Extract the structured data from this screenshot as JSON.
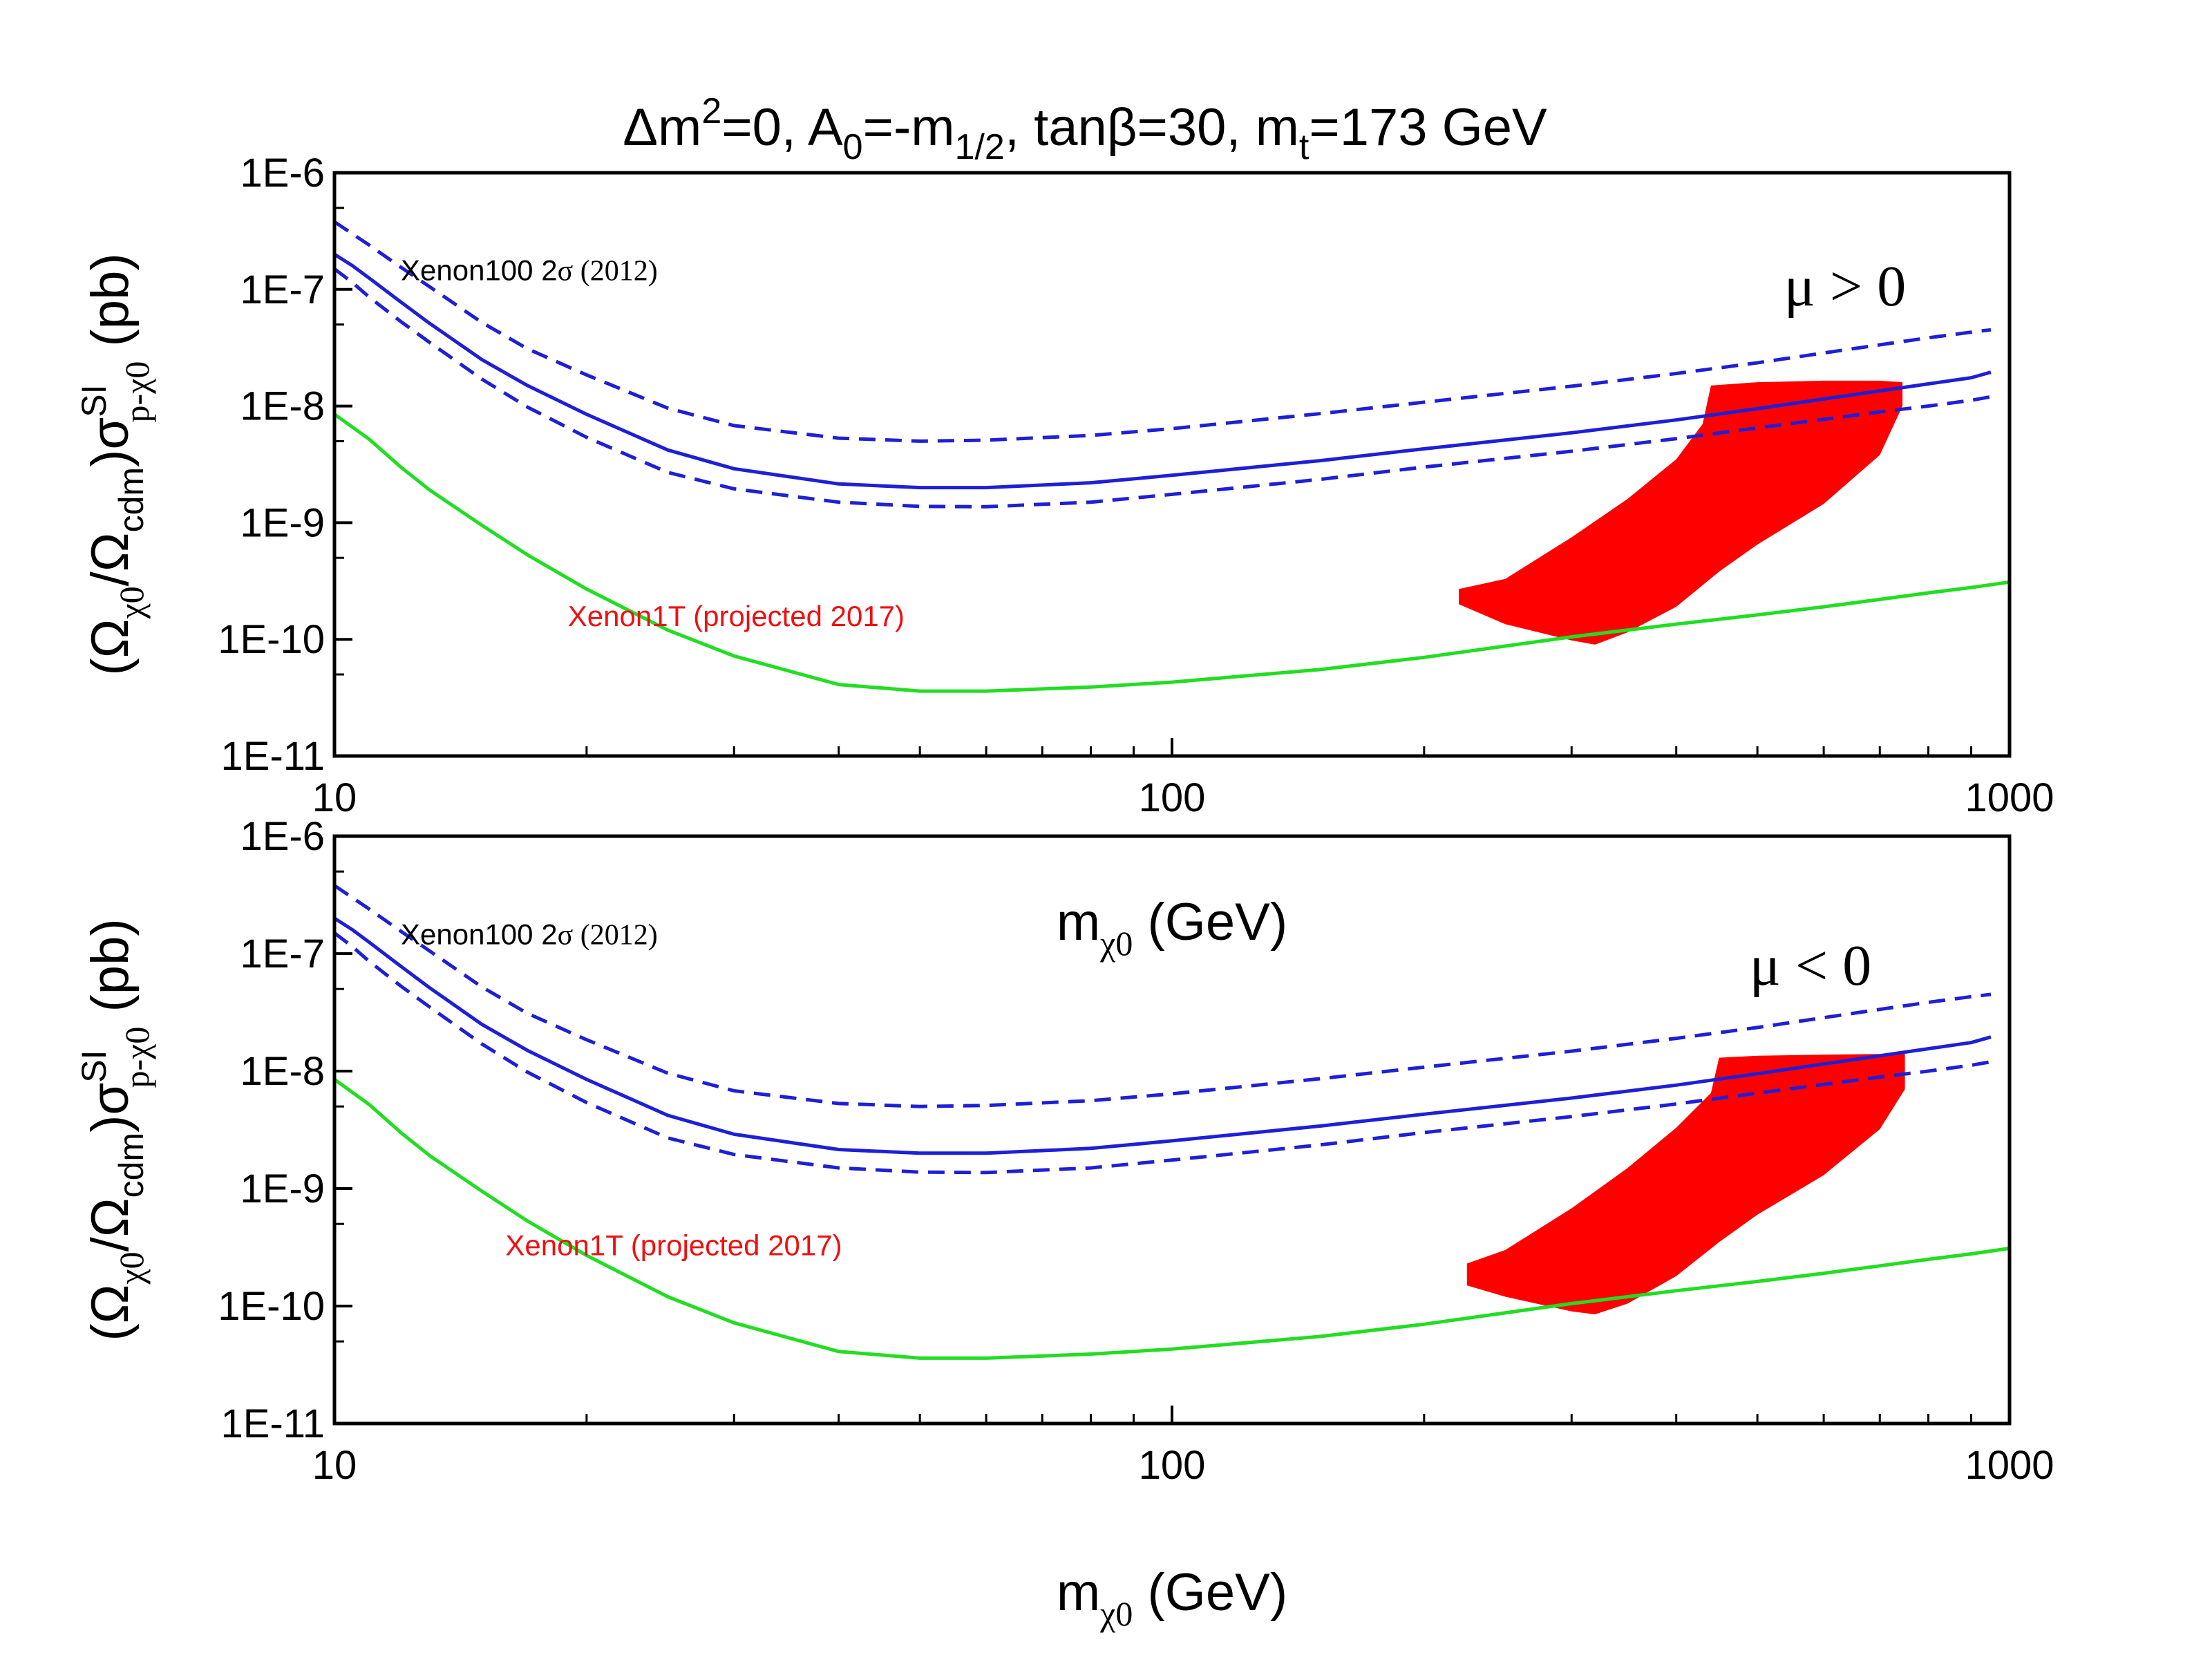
{
  "figure": {
    "title_parts": [
      "Δm",
      "2",
      "=0, A",
      "0",
      "=-m",
      "1/2",
      ", tanβ=30, m",
      "t",
      "=173 GeV"
    ],
    "colors": {
      "xenon100": "#1f1fd6",
      "xenon1t": "#22dd22",
      "allowed_region": "#ff0000",
      "axis": "#000000",
      "xenon1t_label": "#ee1111"
    }
  },
  "chart_data": [
    {
      "type": "line",
      "panel": "top",
      "sign_label": "μ > 0",
      "xlabel_parts": [
        "m",
        "χ0",
        " (GeV)"
      ],
      "ylabel_parts": [
        "(Ω",
        "χ0",
        "/Ω",
        "cdm",
        ")σ",
        "SI",
        "p-χ0",
        " (pb)"
      ],
      "xscale": "log",
      "yscale": "log",
      "xlim": [
        10,
        1000
      ],
      "ylim": [
        1e-11,
        1e-06
      ],
      "x_ticks": [
        10,
        100,
        1000
      ],
      "x_tick_labels": [
        "10",
        "100",
        "1000"
      ],
      "y_ticks": [
        1e-06,
        1e-07,
        1e-08,
        1e-09,
        1e-10,
        1e-11
      ],
      "y_tick_labels": [
        "1E-6",
        "1E-7",
        "1E-8",
        "1E-9",
        "1E-10",
        "1E-11"
      ],
      "annotations": [
        {
          "text_parts": [
            "Xenon100 2",
            "σ",
            " (2012)"
          ],
          "x": 12,
          "y": 1.2e-07,
          "kind": "xenon100"
        },
        {
          "text": "Xenon1T (projected 2017)",
          "x": 19,
          "y": 1.3e-10,
          "kind": "xenon1t"
        }
      ],
      "series": [
        {
          "name": "Xenon100 2σ (2012)",
          "style": "solid",
          "x": [
            10,
            10.5,
            11,
            12,
            13,
            15,
            17,
            20,
            25,
            30,
            40,
            50,
            60,
            80,
            100,
            150,
            200,
            300,
            400,
            500,
            600,
            700,
            800,
            900,
            950
          ],
          "y": [
            2e-07,
            1.6e-07,
            1.25e-07,
            7.8e-08,
            5.1e-08,
            2.5e-08,
            1.5e-08,
            8.5e-09,
            4.2e-09,
            2.9e-09,
            2.15e-09,
            2e-09,
            2e-09,
            2.2e-09,
            2.55e-09,
            3.4e-09,
            4.3e-09,
            5.9e-09,
            7.6e-09,
            9.5e-09,
            1.15e-08,
            1.35e-08,
            1.55e-08,
            1.75e-08,
            1.95e-08
          ]
        },
        {
          "name": "Xenon100 2σ upper",
          "style": "dashed",
          "x": [
            10,
            10.5,
            11,
            12,
            13,
            15,
            17,
            20,
            25,
            30,
            40,
            50,
            60,
            80,
            100,
            150,
            200,
            300,
            400,
            500,
            600,
            700,
            800,
            900,
            950
          ],
          "y": [
            3.8e-07,
            3e-07,
            2.4e-07,
            1.55e-07,
            1.05e-07,
            5.2e-08,
            3.1e-08,
            1.85e-08,
            9.6e-09,
            6.8e-09,
            5.3e-09,
            5e-09,
            5.1e-09,
            5.6e-09,
            6.4e-09,
            8.6e-09,
            1.08e-08,
            1.48e-08,
            1.9e-08,
            2.35e-08,
            2.85e-08,
            3.35e-08,
            3.85e-08,
            4.3e-08,
            4.5e-08
          ]
        },
        {
          "name": "Xenon100 2σ lower",
          "style": "dashed",
          "x": [
            10,
            10.5,
            11,
            12,
            13,
            15,
            17,
            20,
            25,
            30,
            40,
            50,
            60,
            80,
            100,
            150,
            200,
            300,
            400,
            500,
            600,
            700,
            800,
            900,
            950
          ],
          "y": [
            1.5e-07,
            1.15e-07,
            8.6e-08,
            5.3e-08,
            3.5e-08,
            1.7e-08,
            9.8e-09,
            5.4e-09,
            2.7e-09,
            1.95e-09,
            1.5e-09,
            1.38e-09,
            1.37e-09,
            1.5e-09,
            1.75e-09,
            2.35e-09,
            3e-09,
            4.1e-09,
            5.25e-09,
            6.5e-09,
            7.7e-09,
            8.9e-09,
            1e-08,
            1.12e-08,
            1.2e-08
          ]
        },
        {
          "name": "Xenon1T (projected 2017)",
          "style": "solid",
          "x": [
            10,
            11,
            12,
            13,
            15,
            17,
            20,
            25,
            30,
            40,
            50,
            60,
            80,
            100,
            150,
            200,
            300,
            400,
            500,
            600,
            700,
            800,
            900,
            1000
          ],
          "y": [
            8.5e-09,
            5.2e-09,
            3e-09,
            1.9e-09,
            9.5e-10,
            5.3e-10,
            2.7e-10,
            1.2e-10,
            7.2e-11,
            4.1e-11,
            3.6e-11,
            3.6e-11,
            3.9e-11,
            4.3e-11,
            5.5e-11,
            7e-11,
            1.05e-10,
            1.35e-10,
            1.62e-10,
            1.9e-10,
            2.2e-10,
            2.5e-10,
            2.78e-10,
            3.1e-10
          ]
        }
      ],
      "region": {
        "name": "allowed neutralino region",
        "upper": {
          "x": [
            220,
            250,
            300,
            350,
            400,
            430,
            440,
            500,
            600,
            700,
            745
          ],
          "y": [
            2.7e-10,
            3.3e-10,
            7.5e-10,
            1.6e-09,
            3.5e-09,
            7e-09,
            1.5e-08,
            1.6e-08,
            1.65e-08,
            1.65e-08,
            1.6e-08
          ]
        },
        "lower": {
          "x": [
            745,
            700,
            600,
            500,
            450,
            400,
            350,
            320,
            300,
            250,
            220
          ],
          "y": [
            1e-08,
            3.8e-09,
            1.45e-09,
            6.5e-10,
            3.8e-10,
            1.9e-10,
            1.15e-10,
            9e-11,
            9.8e-11,
            1.35e-10,
            2e-10
          ]
        }
      }
    },
    {
      "type": "line",
      "panel": "bottom",
      "sign_label": "μ < 0",
      "xlabel_parts": [
        "m",
        "χ0",
        " (GeV)"
      ],
      "ylabel_parts": [
        "(Ω",
        "χ0",
        "/Ω",
        "cdm",
        ")σ",
        "SI",
        "p-χ0",
        " (pb)"
      ],
      "xscale": "log",
      "yscale": "log",
      "xlim": [
        10,
        1000
      ],
      "ylim": [
        1e-11,
        1e-06
      ],
      "x_ticks": [
        10,
        100,
        1000
      ],
      "x_tick_labels": [
        "10",
        "100",
        "1000"
      ],
      "y_ticks": [
        1e-06,
        1e-07,
        1e-08,
        1e-09,
        1e-10,
        1e-11
      ],
      "y_tick_labels": [
        "1E-6",
        "1E-7",
        "1E-8",
        "1E-9",
        "1E-10",
        "1E-11"
      ],
      "annotations": [
        {
          "text_parts": [
            "Xenon100 2",
            "σ",
            " (2012)"
          ],
          "x": 12,
          "y": 1.2e-07,
          "kind": "xenon100"
        },
        {
          "text": "Xenon1T (projected 2017)",
          "x": 16,
          "y": 2.7e-10,
          "kind": "xenon1t"
        }
      ],
      "series": [
        {
          "name": "Xenon100 2σ (2012)",
          "style": "solid",
          "x": [
            10,
            10.5,
            11,
            12,
            13,
            15,
            17,
            20,
            25,
            30,
            40,
            50,
            60,
            80,
            100,
            150,
            200,
            300,
            400,
            500,
            600,
            700,
            800,
            900,
            950
          ],
          "y": [
            2e-07,
            1.6e-07,
            1.25e-07,
            7.8e-08,
            5.1e-08,
            2.5e-08,
            1.5e-08,
            8.5e-09,
            4.2e-09,
            2.9e-09,
            2.15e-09,
            2e-09,
            2e-09,
            2.2e-09,
            2.55e-09,
            3.4e-09,
            4.3e-09,
            5.9e-09,
            7.6e-09,
            9.5e-09,
            1.15e-08,
            1.35e-08,
            1.55e-08,
            1.75e-08,
            1.95e-08
          ]
        },
        {
          "name": "Xenon100 2σ upper",
          "style": "dashed",
          "x": [
            10,
            10.5,
            11,
            12,
            13,
            15,
            17,
            20,
            25,
            30,
            40,
            50,
            60,
            80,
            100,
            150,
            200,
            300,
            400,
            500,
            600,
            700,
            800,
            900,
            950
          ],
          "y": [
            3.8e-07,
            3e-07,
            2.4e-07,
            1.55e-07,
            1.05e-07,
            5.2e-08,
            3.1e-08,
            1.85e-08,
            9.6e-09,
            6.8e-09,
            5.3e-09,
            5e-09,
            5.1e-09,
            5.6e-09,
            6.4e-09,
            8.6e-09,
            1.08e-08,
            1.48e-08,
            1.9e-08,
            2.35e-08,
            2.85e-08,
            3.35e-08,
            3.85e-08,
            4.3e-08,
            4.5e-08
          ]
        },
        {
          "name": "Xenon100 2σ lower",
          "style": "dashed",
          "x": [
            10,
            10.5,
            11,
            12,
            13,
            15,
            17,
            20,
            25,
            30,
            40,
            50,
            60,
            80,
            100,
            150,
            200,
            300,
            400,
            500,
            600,
            700,
            800,
            900,
            950
          ],
          "y": [
            1.5e-07,
            1.15e-07,
            8.6e-08,
            5.3e-08,
            3.5e-08,
            1.7e-08,
            9.8e-09,
            5.4e-09,
            2.7e-09,
            1.95e-09,
            1.5e-09,
            1.38e-09,
            1.37e-09,
            1.5e-09,
            1.75e-09,
            2.35e-09,
            3e-09,
            4.1e-09,
            5.25e-09,
            6.5e-09,
            7.7e-09,
            8.9e-09,
            1e-08,
            1.12e-08,
            1.2e-08
          ]
        },
        {
          "name": "Xenon1T (projected 2017)",
          "style": "solid",
          "x": [
            10,
            11,
            12,
            13,
            15,
            17,
            20,
            25,
            30,
            40,
            50,
            60,
            80,
            100,
            150,
            200,
            300,
            400,
            500,
            600,
            700,
            800,
            900,
            1000
          ],
          "y": [
            8.5e-09,
            5.2e-09,
            3e-09,
            1.9e-09,
            9.5e-10,
            5.3e-10,
            2.7e-10,
            1.2e-10,
            7.2e-11,
            4.1e-11,
            3.6e-11,
            3.6e-11,
            3.9e-11,
            4.3e-11,
            5.5e-11,
            7e-11,
            1.05e-10,
            1.35e-10,
            1.62e-10,
            1.9e-10,
            2.2e-10,
            2.5e-10,
            2.78e-10,
            3.1e-10
          ]
        }
      ],
      "region": {
        "name": "allowed neutralino region",
        "upper": {
          "x": [
            225,
            250,
            300,
            350,
            400,
            440,
            450,
            500,
            600,
            700,
            750
          ],
          "y": [
            2.3e-10,
            3e-10,
            6.8e-10,
            1.5e-09,
            3.3e-09,
            6.5e-09,
            1.3e-08,
            1.35e-08,
            1.38e-08,
            1.4e-08,
            1.4e-08
          ]
        },
        "lower": {
          "x": [
            750,
            700,
            600,
            500,
            450,
            400,
            350,
            320,
            300,
            250,
            225
          ],
          "y": [
            7e-09,
            3.2e-09,
            1.3e-09,
            6e-10,
            3.5e-10,
            1.8e-10,
            1.05e-10,
            8.5e-11,
            9e-11,
            1.2e-10,
            1.5e-10
          ]
        }
      }
    }
  ]
}
